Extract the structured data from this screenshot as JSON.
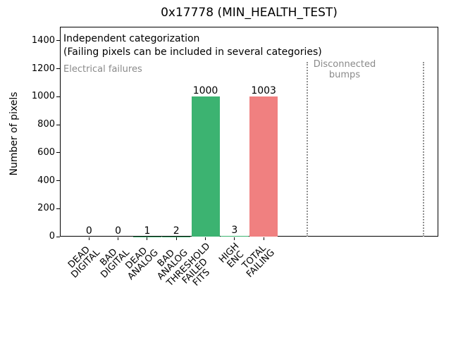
{
  "chart_data": {
    "type": "bar",
    "title": "0x17778 (MIN_HEALTH_TEST)",
    "ylabel": "Number of pixels",
    "xlabel": "",
    "categories": [
      "DEAD\nDIGITAL",
      "BAD\nDIGITAL",
      "DEAD\nANALOG",
      "BAD\nANALOG",
      "THRESHOLD\nFAILED\nFITS",
      "HIGH\nENC",
      "TOTAL\nFAILING"
    ],
    "values": [
      0,
      0,
      1,
      2,
      1000,
      3,
      1003
    ],
    "bar_value_labels": [
      "0",
      "0",
      "1",
      "2",
      "1000",
      "3",
      "1003"
    ],
    "bar_colors": [
      "#3cb371",
      "#3cb371",
      "#3cb371",
      "#3cb371",
      "#3cb371",
      "#3cb371",
      "#f08080"
    ],
    "ylim": [
      0,
      1500
    ],
    "yticks": [
      0,
      200,
      400,
      600,
      800,
      1000,
      1200,
      1400
    ],
    "xlim": [
      -1,
      12
    ],
    "grid": false,
    "legend": null,
    "annotations": [
      {
        "text": "Independent categorization",
        "color": "#000000"
      },
      {
        "text": "(Failing pixels can be included in several categories)",
        "color": "#000000"
      },
      {
        "text": "Electrical failures",
        "color": "#8a8a8a"
      },
      {
        "text": "Disconnected\nbumps",
        "color": "#8a8a8a"
      }
    ],
    "dividers_x": [
      7.5,
      11.5
    ],
    "divider_color": "#909090",
    "divider_style": "dotted"
  }
}
